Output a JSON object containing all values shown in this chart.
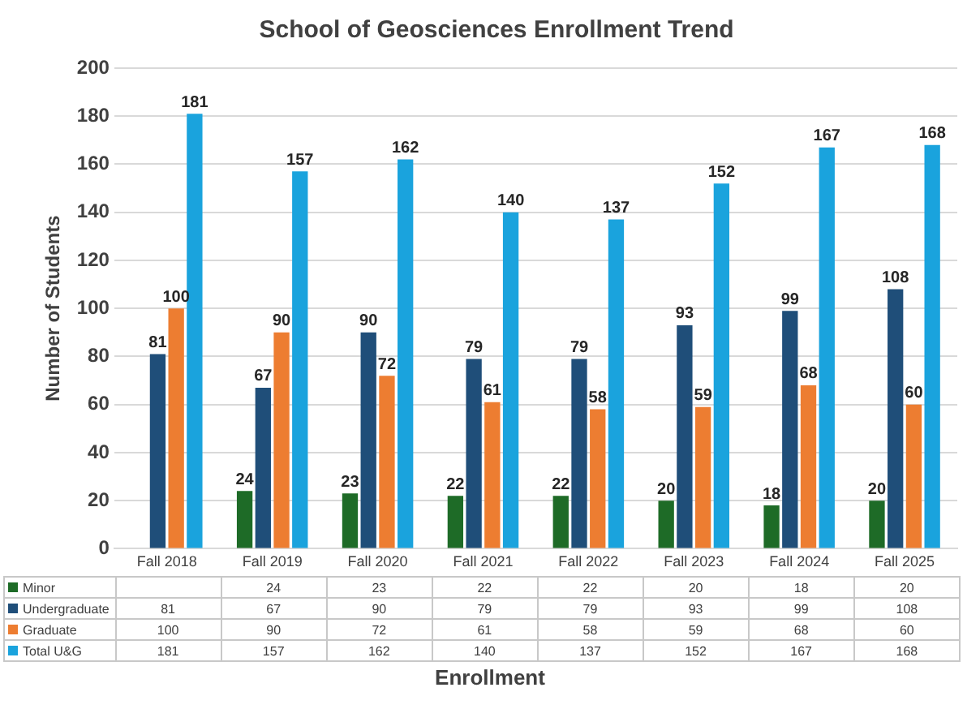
{
  "chart_data": {
    "type": "bar",
    "title": "School of Geosciences Enrollment Trend",
    "xlabel": "Enrollment",
    "ylabel": "Number of Students",
    "categories": [
      "Fall 2018",
      "Fall 2019",
      "Fall 2020",
      "Fall 2021",
      "Fall 2022",
      "Fall 2023",
      "Fall 2024",
      "Fall 2025"
    ],
    "series": [
      {
        "name": "Minor",
        "color": "#1e6b27",
        "values": [
          null,
          24,
          23,
          22,
          22,
          20,
          18,
          20
        ],
        "value_labels": [
          null,
          "24",
          "23",
          "22",
          "22",
          "20",
          "18",
          "20"
        ]
      },
      {
        "name": "Undergraduate",
        "color": "#1f4e79",
        "values": [
          81,
          67,
          90,
          79,
          79,
          93,
          99,
          108
        ],
        "value_labels": [
          "81",
          "67",
          "90",
          "79",
          "79",
          "93",
          "99",
          "108"
        ]
      },
      {
        "name": "Graduate",
        "color": "#ed7d31",
        "values": [
          100,
          90,
          72,
          61,
          58,
          59,
          68,
          60
        ],
        "value_labels": [
          "100",
          "90",
          "72",
          "61",
          "58",
          "59",
          "68",
          "60"
        ]
      },
      {
        "name": "Total U&G",
        "color": "#1aa3dd",
        "values": [
          181,
          157,
          162,
          140,
          137,
          152,
          167,
          168
        ],
        "value_labels": [
          "181",
          "157",
          "162",
          "140",
          "137",
          "152",
          "167",
          "168"
        ]
      }
    ],
    "annotations": [
      "24",
      "23",
      "22",
      "22",
      "20",
      "18",
      "20",
      "81",
      "67",
      "90",
      "79",
      "79",
      "93",
      "99",
      "108",
      "100",
      "90",
      "72",
      "61",
      "58",
      "59",
      "68",
      "60",
      "181",
      "157",
      "162",
      "140",
      "137",
      "152",
      "167",
      "168"
    ],
    "ylim": [
      0,
      200
    ],
    "yticks": [
      0,
      20,
      40,
      60,
      80,
      100,
      120,
      140,
      160,
      180,
      200
    ],
    "grid": "y",
    "data_labels": true,
    "legend": "bottom"
  }
}
